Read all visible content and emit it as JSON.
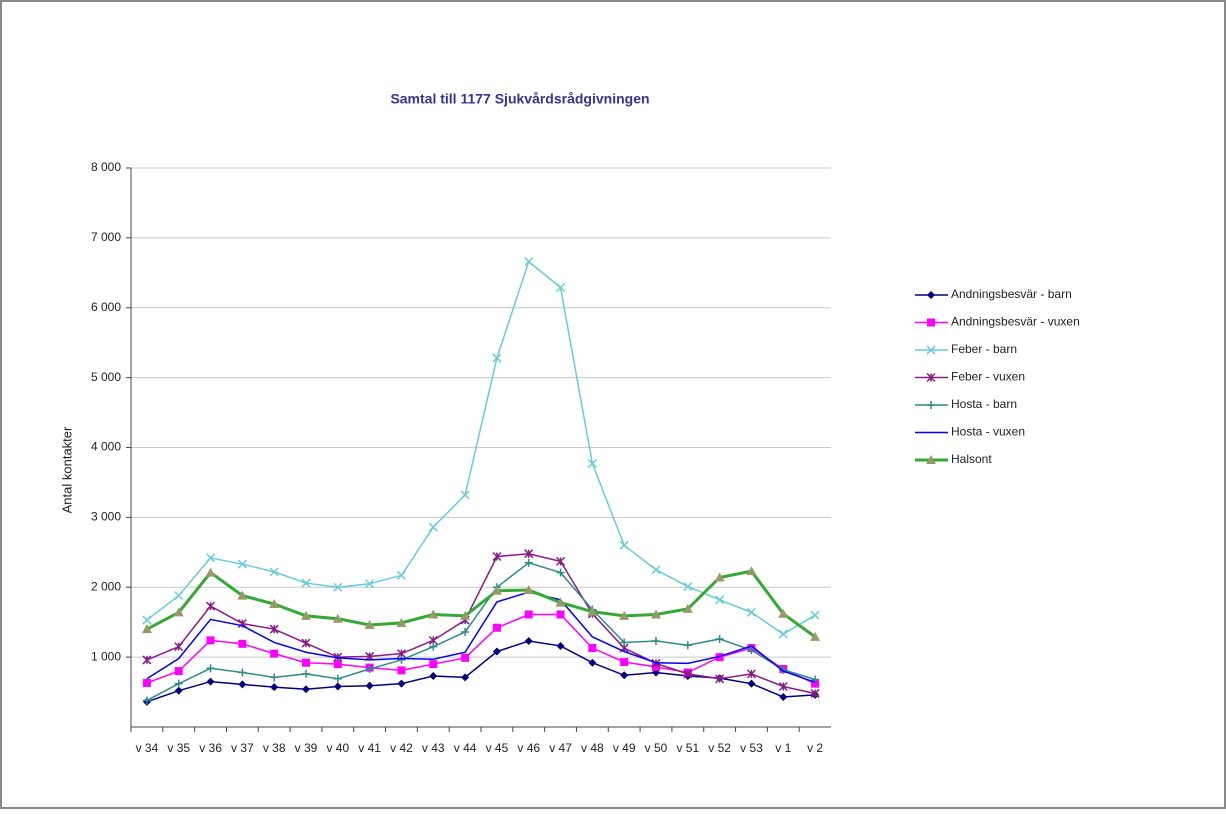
{
  "chart_data": {
    "type": "line",
    "title": "Samtal till 1177 Sjukvårdsrådgivningen",
    "y_label": "Antal kontakter",
    "categories": [
      "v 34",
      "v 35",
      "v 36",
      "v 37",
      "v 38",
      "v 39",
      "v 40",
      "v 41",
      "v 42",
      "v 43",
      "v 44",
      "v 45",
      "v 46",
      "v 47",
      "v 48",
      "v 49",
      "v 50",
      "v 51",
      "v 52",
      "v 53",
      "v 1",
      "v 2"
    ],
    "ylim": [
      0,
      8000
    ],
    "yticks": [
      {
        "value": 1000,
        "label": "1 000"
      },
      {
        "value": 2000,
        "label": "2 000"
      },
      {
        "value": 3000,
        "label": "3 000"
      },
      {
        "value": 4000,
        "label": "4 000"
      },
      {
        "value": 5000,
        "label": "5 000"
      },
      {
        "value": 6000,
        "label": "6 000"
      },
      {
        "value": 7000,
        "label": "7 000"
      },
      {
        "value": 8000,
        "label": "8 000"
      }
    ],
    "grid": true,
    "legend": "right",
    "series": [
      {
        "name": "Andningsbesvär - barn",
        "color": "#000080",
        "marker": "diamond",
        "values": [
          360,
          520,
          650,
          610,
          570,
          540,
          580,
          590,
          620,
          730,
          710,
          1080,
          1230,
          1160,
          920,
          740,
          780,
          730,
          700,
          620,
          430,
          460
        ]
      },
      {
        "name": "Andningsbesvär - vuxen",
        "color": "#ff00ff",
        "marker": "square",
        "values": [
          630,
          800,
          1240,
          1190,
          1050,
          920,
          900,
          850,
          810,
          900,
          990,
          1420,
          1610,
          1610,
          1130,
          930,
          860,
          780,
          1000,
          1130,
          830,
          620
        ]
      },
      {
        "name": "Feber - barn",
        "color": "#66ccdd",
        "marker": "x",
        "values": [
          1530,
          1880,
          2420,
          2330,
          2220,
          2060,
          2000,
          2050,
          2170,
          2860,
          3320,
          5280,
          6660,
          6290,
          3770,
          2600,
          2250,
          2010,
          1820,
          1640,
          1330,
          1600
        ]
      },
      {
        "name": "Feber - vuxen",
        "color": "#8b1a89",
        "marker": "star",
        "values": [
          960,
          1150,
          1730,
          1480,
          1400,
          1200,
          1000,
          1010,
          1050,
          1240,
          1530,
          2440,
          2480,
          2370,
          1620,
          1130,
          910,
          760,
          690,
          760,
          580,
          480
        ]
      },
      {
        "name": "Hosta - barn",
        "color": "#2e8b8b",
        "marker": "plus",
        "values": [
          380,
          620,
          840,
          780,
          710,
          760,
          690,
          830,
          960,
          1150,
          1360,
          2000,
          2350,
          2210,
          1680,
          1210,
          1230,
          1170,
          1260,
          1100,
          820,
          680
        ]
      },
      {
        "name": "Hosta - vuxen",
        "color": "#0000ff",
        "marker": "none",
        "values": [
          690,
          980,
          1540,
          1450,
          1210,
          1070,
          990,
          960,
          980,
          970,
          1070,
          1790,
          1930,
          1820,
          1290,
          1080,
          920,
          910,
          1010,
          1160,
          800,
          640
        ]
      },
      {
        "name": "Halsont",
        "color": "#33aa33",
        "marker": "triangle",
        "values": [
          1400,
          1640,
          2210,
          1880,
          1760,
          1590,
          1550,
          1460,
          1490,
          1610,
          1590,
          1950,
          1960,
          1780,
          1650,
          1590,
          1610,
          1690,
          2140,
          2230,
          1620,
          1290
        ]
      }
    ]
  }
}
